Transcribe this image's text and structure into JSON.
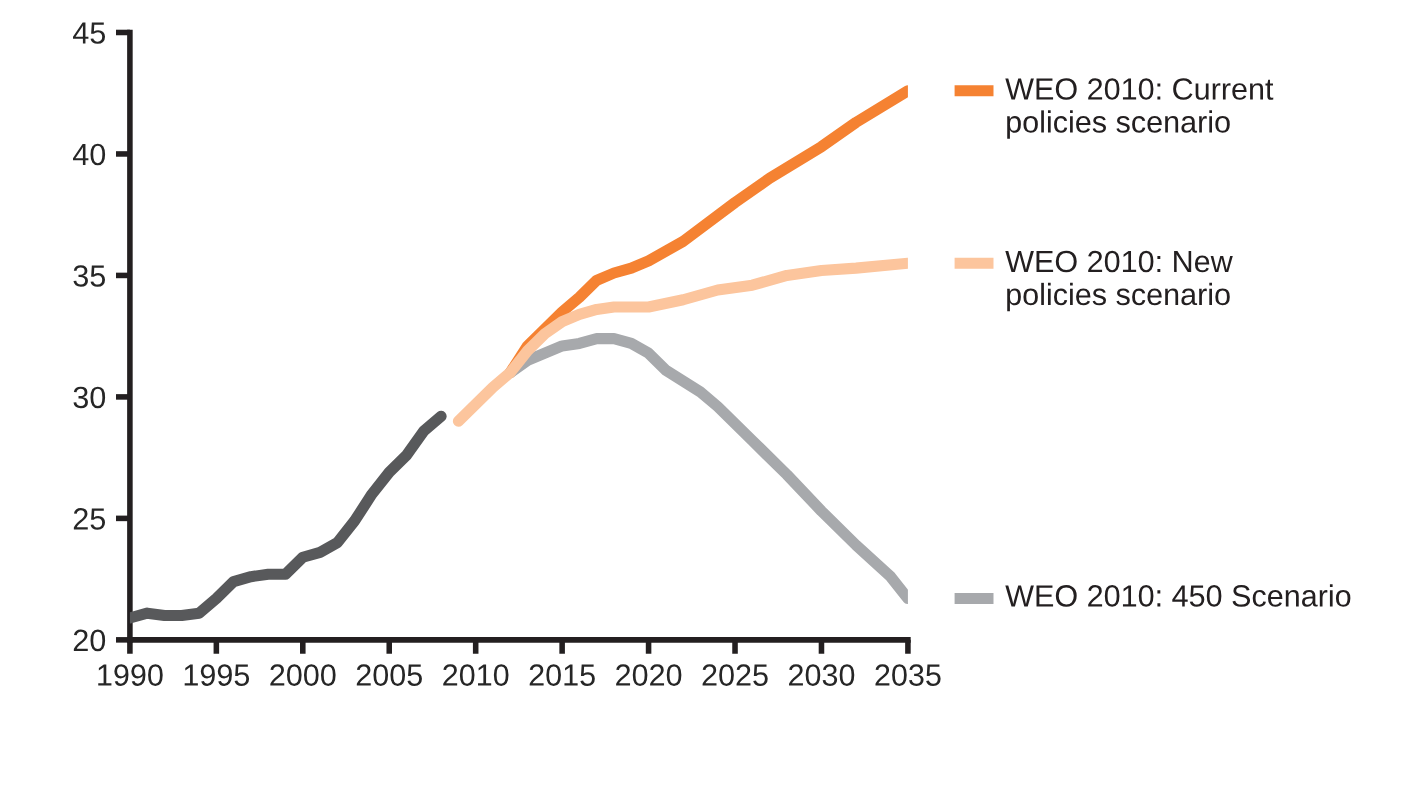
{
  "chart_data": {
    "type": "line",
    "xlim": [
      1990,
      2035
    ],
    "xticks": [
      1990,
      1995,
      2000,
      2005,
      2010,
      2015,
      2020,
      2025,
      2030,
      2035
    ],
    "ylim": [
      20,
      45
    ],
    "yticks": [
      20,
      25,
      30,
      35,
      40,
      45
    ],
    "grid": false,
    "legend": "right",
    "line_style": "solid",
    "series": [
      {
        "color": "#58595b",
        "x": [
          1990,
          1991,
          1992,
          1993,
          1994,
          1995,
          1996,
          1997,
          1998,
          1999,
          2000,
          2001,
          2002,
          2003,
          2004,
          2005,
          2006,
          2007,
          2008
        ],
        "values": [
          20.9,
          21.1,
          21.0,
          21.0,
          21.1,
          21.7,
          22.4,
          22.6,
          22.7,
          22.7,
          23.4,
          23.6,
          24.0,
          24.9,
          26.0,
          26.9,
          27.6,
          28.6,
          29.2
        ]
      },
      {
        "name": "WEO 2010: Current\npolicies scenario",
        "color": "#f58232",
        "x": [
          2012,
          2013,
          2014,
          2015,
          2016,
          2017,
          2018,
          2019,
          2020,
          2022,
          2025,
          2027,
          2030,
          2032,
          2035
        ],
        "values": [
          31.0,
          32.1,
          32.8,
          33.5,
          34.1,
          34.8,
          35.1,
          35.3,
          35.6,
          36.4,
          38.0,
          39.0,
          40.3,
          41.3,
          42.6
        ]
      },
      {
        "name": "WEO 2010: New\npolicies scenario",
        "color": "#fcc59d",
        "x": [
          2009,
          2010,
          2011,
          2012,
          2013,
          2014,
          2015,
          2016,
          2017,
          2018,
          2020,
          2022,
          2024,
          2026,
          2028,
          2030,
          2032,
          2035
        ],
        "values": [
          29.0,
          29.7,
          30.4,
          31.0,
          31.9,
          32.6,
          33.1,
          33.4,
          33.6,
          33.7,
          33.7,
          34.0,
          34.4,
          34.6,
          35.0,
          35.2,
          35.3,
          35.5
        ]
      },
      {
        "name": "WEO 2010: 450 Scenario",
        "color": "#a7a9ac",
        "x": [
          2012,
          2013,
          2014,
          2015,
          2016,
          2017,
          2018,
          2019,
          2020,
          2021,
          2023,
          2024,
          2026,
          2028,
          2030,
          2032,
          2034,
          2035
        ],
        "values": [
          31.0,
          31.5,
          31.8,
          32.1,
          32.2,
          32.4,
          32.4,
          32.2,
          31.8,
          31.1,
          30.2,
          29.6,
          28.2,
          26.8,
          25.3,
          23.9,
          22.6,
          21.7
        ]
      }
    ]
  }
}
